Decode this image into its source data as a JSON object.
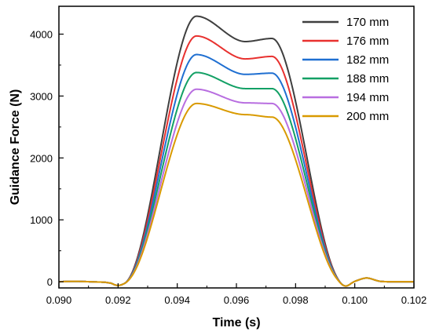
{
  "chart_data": {
    "type": "line",
    "xlabel": "Time (s)",
    "ylabel": "Guidance Force (N)",
    "xlim": [
      0.09,
      0.102
    ],
    "ylim": [
      -100,
      4450
    ],
    "x_ticks": [
      "0.090",
      "0.092",
      "0.094",
      "0.096",
      "0.098",
      "0.100",
      "0.102"
    ],
    "x_tick_values": [
      0.09,
      0.092,
      0.094,
      0.096,
      0.098,
      0.1,
      0.102
    ],
    "y_ticks": [
      "0",
      "1000",
      "2000",
      "3000",
      "4000"
    ],
    "y_tick_values": [
      0,
      1000,
      2000,
      3000,
      4000
    ],
    "legend_position": "top-right",
    "grid": false,
    "series": [
      {
        "name": "170 mm",
        "color": "#3f3f3f",
        "peak1": 4290,
        "valley": 3880,
        "peak2": 3930
      },
      {
        "name": "176 mm",
        "color": "#e8312f",
        "peak1": 3970,
        "valley": 3600,
        "peak2": 3640
      },
      {
        "name": "182 mm",
        "color": "#1f6fd1",
        "peak1": 3670,
        "valley": 3350,
        "peak2": 3370
      },
      {
        "name": "188 mm",
        "color": "#13a065",
        "peak1": 3380,
        "valley": 3120,
        "peak2": 3120
      },
      {
        "name": "194 mm",
        "color": "#b86ee0",
        "peak1": 3110,
        "valley": 2890,
        "peak2": 2880
      },
      {
        "name": "200 mm",
        "color": "#d99a00",
        "peak1": 2880,
        "valley": 2700,
        "peak2": 2660
      }
    ]
  }
}
